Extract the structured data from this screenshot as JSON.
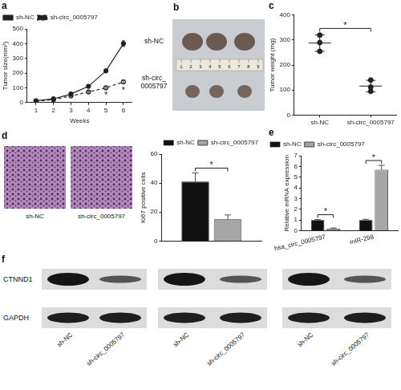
{
  "chart_data": [
    {
      "panel": "a",
      "type": "line",
      "x": [
        1,
        2,
        3,
        4,
        5,
        6
      ],
      "xlim": [
        0.5,
        6.5
      ],
      "xticks": [
        1,
        2,
        3,
        4,
        5,
        6
      ],
      "x_label": "Weeks",
      "y_label": "Tumor size(mm³)",
      "ylim": [
        0,
        500
      ],
      "yticks": [
        0,
        100,
        200,
        300,
        400,
        500
      ],
      "grid": false,
      "legend": "top-left",
      "series": [
        {
          "name": "sh-NC",
          "color": "#222222",
          "marker": "circle",
          "line_style": "solid",
          "values": [
            12,
            25,
            58,
            110,
            215,
            400
          ],
          "errors": [
            2,
            3,
            5,
            8,
            12,
            20
          ]
        },
        {
          "name": "sh-circ_0005797",
          "color": "#222222",
          "marker": "open-circle",
          "line_style": "dashed",
          "values": [
            10,
            20,
            45,
            72,
            100,
            140
          ],
          "errors": [
            2,
            3,
            4,
            6,
            8,
            12
          ]
        }
      ],
      "annotations": [
        {
          "text": "*",
          "x": 5
        },
        {
          "text": "*",
          "x": 6
        }
      ]
    },
    {
      "panel": "c",
      "type": "scatter",
      "categories": [
        "sh-NC",
        "sh-circ_0005797"
      ],
      "values": [
        [
          320,
          290,
          255
        ],
        [
          140,
          112,
          95
        ]
      ],
      "means": [
        288,
        116
      ],
      "errors": [
        33,
        23
      ],
      "y_label": "Tumor weight (mg)",
      "ylim": [
        0,
        400
      ],
      "yticks": [
        0,
        100,
        200,
        300,
        400
      ],
      "grid": false,
      "color": "#222222",
      "marker": "circle",
      "annotations": [
        {
          "text": "*"
        }
      ]
    },
    {
      "type": "bar",
      "categories": [
        null
      ],
      "series": [
        {
          "name": "sh-NC",
          "color": "#111111",
          "values": [
            41
          ],
          "errors": [
            6
          ]
        },
        {
          "name": "sh-circ_0005797",
          "color": "#a6a6a6",
          "values": [
            15
          ],
          "errors": [
            3
          ]
        }
      ],
      "y_label": "Ki67 positive cells",
      "ylim": [
        0,
        60
      ],
      "yticks": [
        0,
        20,
        40,
        60
      ],
      "grid": false,
      "legend": "top-right",
      "annotations": [
        {
          "text": "*"
        }
      ]
    },
    {
      "panel": "e",
      "type": "bar",
      "categories": [
        "hsa_circ_0005797",
        "miR-298"
      ],
      "series": [
        {
          "name": "sh-NC",
          "color": "#111111",
          "values": [
            1.0,
            1.0
          ],
          "errors": [
            0.05,
            0.07
          ]
        },
        {
          "name": "sh-circ_0005797",
          "color": "#a6a6a6",
          "values": [
            0.2,
            5.7
          ],
          "errors": [
            0.06,
            0.4
          ]
        }
      ],
      "y_label": "Relative mRNA expression",
      "ylim": [
        0,
        7
      ],
      "yticks": [
        0,
        1,
        2,
        3,
        4,
        5,
        6,
        7
      ],
      "grid": false,
      "legend": "top-left",
      "annotations": [
        {
          "text": "*",
          "x": "hsa_circ_0005797"
        },
        {
          "text": "*",
          "x": "miR-298"
        }
      ]
    }
  ],
  "images": [
    {
      "panel": "b",
      "row_labels": [
        "sh-NC",
        "sh-circ_0005797"
      ],
      "ruler": [
        1,
        2,
        3,
        4,
        5,
        6,
        7,
        8,
        9
      ]
    },
    {
      "panel": "d",
      "labels": [
        "sh-NC",
        "sh-circ_0005797"
      ]
    },
    {
      "panel": "f",
      "rows": [
        "CTNND1",
        "GAPDH"
      ],
      "lanes": [
        "sh-NC",
        "sh-circ_0005797",
        "sh-NC",
        "sh-circ_0005797",
        "sh-NC",
        "sh-circ_0005797"
      ]
    }
  ]
}
